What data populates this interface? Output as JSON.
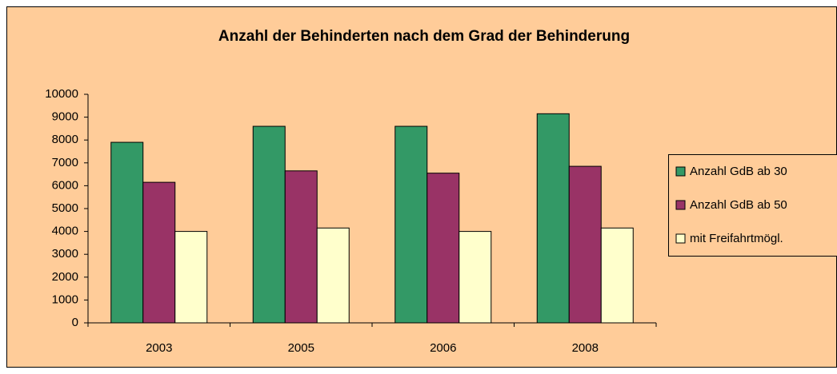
{
  "chart_data": {
    "type": "bar",
    "title": "Anzahl der Behinderten nach dem Grad der Behinderung",
    "categories": [
      "2003",
      "2005",
      "2006",
      "2008"
    ],
    "series": [
      {
        "name": "Anzahl GdB ab 30",
        "color": "#339966",
        "values": [
          7900,
          8600,
          8600,
          9150
        ]
      },
      {
        "name": "Anzahl GdB ab 50",
        "color": "#993366",
        "values": [
          6150,
          6650,
          6550,
          6850
        ]
      },
      {
        "name": "mit Freifahrtmögl.",
        "color": "#ffffcc",
        "values": [
          4000,
          4150,
          4000,
          4150
        ]
      }
    ],
    "ylim": [
      0,
      10000
    ],
    "yticks": [
      0,
      1000,
      2000,
      3000,
      4000,
      5000,
      6000,
      7000,
      8000,
      9000,
      10000
    ],
    "legend": "right",
    "background": "#ffcc99"
  }
}
